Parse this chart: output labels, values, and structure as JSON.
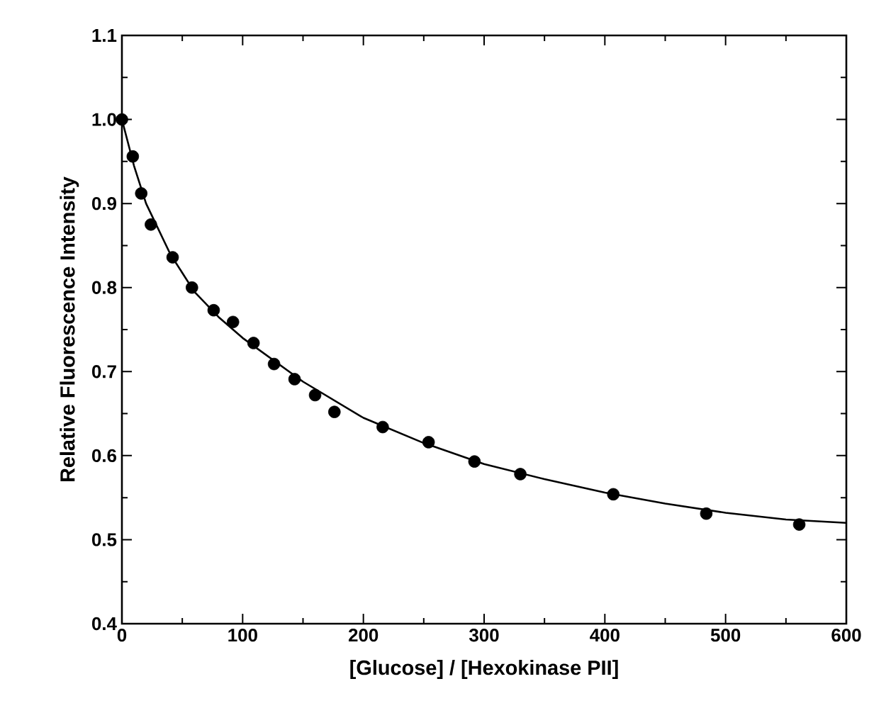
{
  "chart_data": {
    "type": "scatter",
    "xlabel": "[Glucose] / [Hexokinase PII]",
    "ylabel": "Relative Fluorescence  Intensity",
    "xlim": [
      0,
      600
    ],
    "ylim": [
      0.4,
      1.1
    ],
    "xticks": [
      0,
      100,
      200,
      300,
      400,
      500,
      600
    ],
    "yticks": [
      {
        "value": 0.4,
        "label": "0.4"
      },
      {
        "value": 0.5,
        "label": "0.5"
      },
      {
        "value": 0.6,
        "label": "0.6"
      },
      {
        "value": 0.7,
        "label": "0.7"
      },
      {
        "value": 0.8,
        "label": "0.8"
      },
      {
        "value": 0.9,
        "label": "0.9"
      },
      {
        "value": 1.0,
        "label": "1.0"
      },
      {
        "value": 1.1,
        "label": "1.1"
      }
    ],
    "grid": false,
    "series": [
      {
        "color": "#000000",
        "marker": "circle",
        "x": [
          0,
          9,
          16,
          24,
          42,
          58,
          76,
          92,
          109,
          126,
          143,
          160,
          176,
          216,
          254,
          292,
          330,
          407,
          484,
          561
        ],
        "values": [
          1.0,
          0.956,
          0.912,
          0.875,
          0.836,
          0.8,
          0.773,
          0.759,
          0.734,
          0.709,
          0.691,
          0.672,
          0.652,
          0.634,
          0.616,
          0.593,
          0.578,
          0.554,
          0.531,
          0.518
        ]
      },
      {
        "type": "line",
        "color": "#000000",
        "marker": "none",
        "line_style": "solid",
        "x": [
          0,
          10,
          20,
          40,
          60,
          80,
          100,
          150,
          200,
          250,
          300,
          350,
          400,
          450,
          500,
          550,
          600
        ],
        "values": [
          1.0,
          0.945,
          0.9,
          0.84,
          0.795,
          0.765,
          0.74,
          0.688,
          0.645,
          0.615,
          0.59,
          0.572,
          0.556,
          0.543,
          0.532,
          0.524,
          0.52
        ]
      }
    ]
  }
}
